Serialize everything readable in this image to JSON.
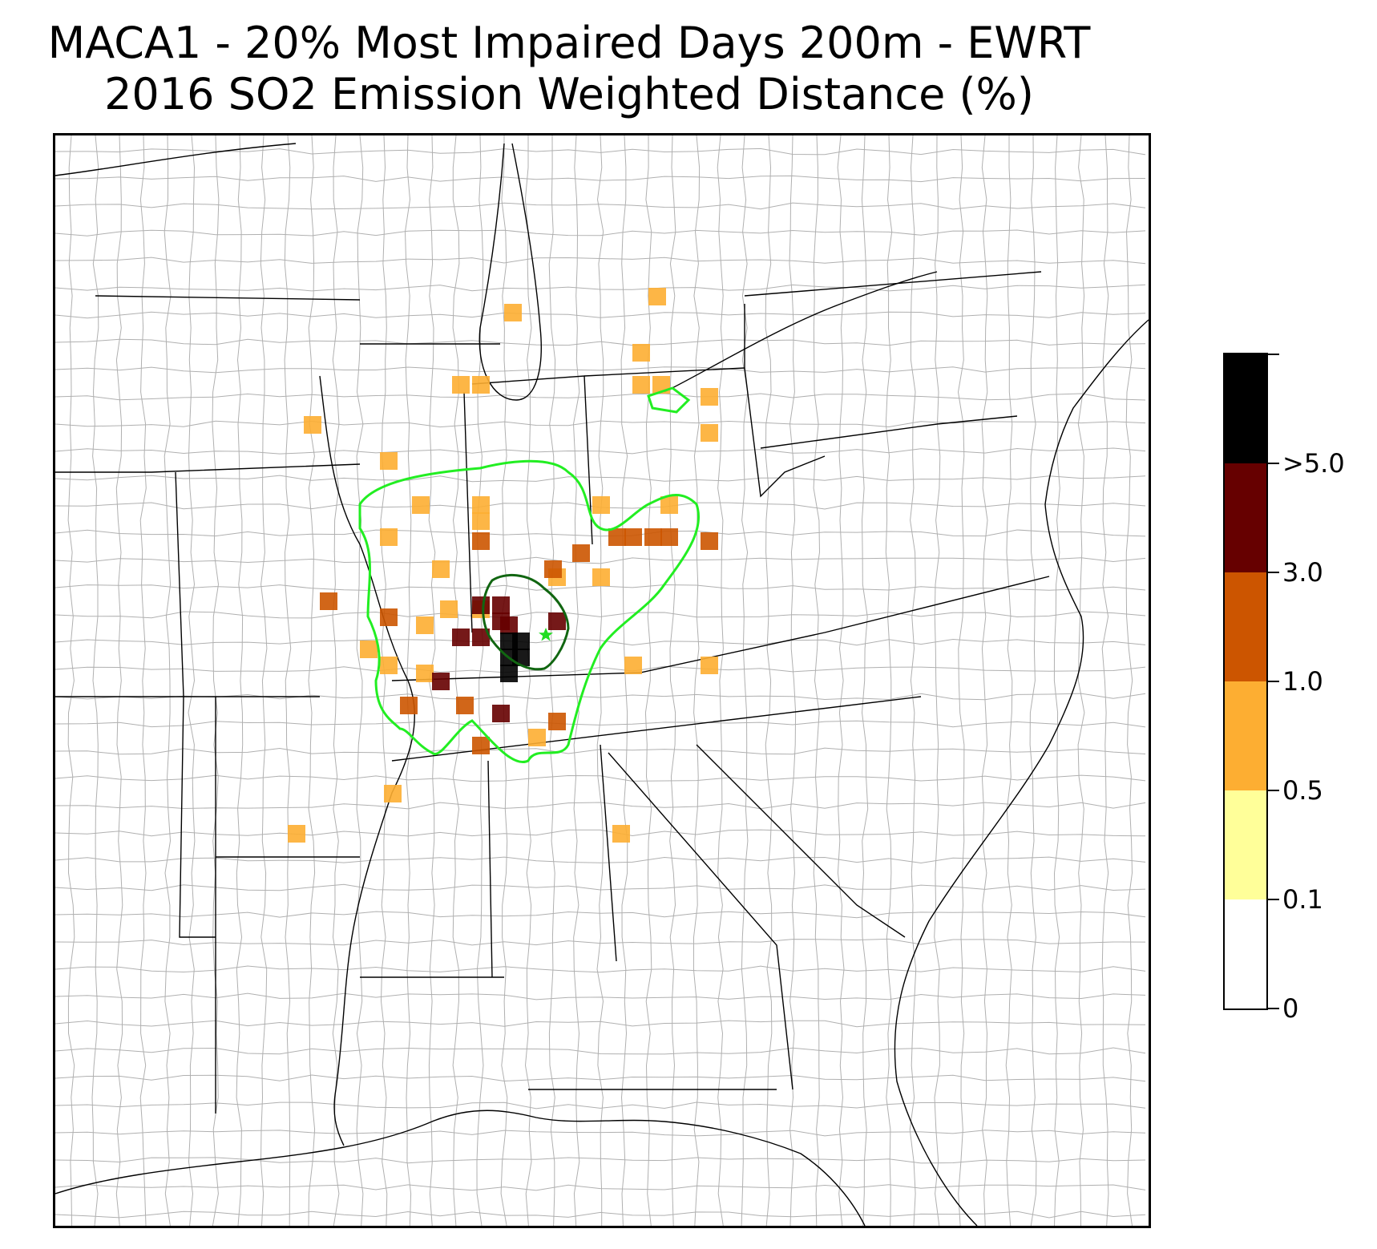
{
  "title": {
    "line1": "MACA1 - 20% Most Impaired Days 200m - EWRT",
    "line2": "2016 SO2 Emission Weighted Distance (%)"
  },
  "colorbar": {
    "bins": [
      {
        "from": "0",
        "to": "0.1",
        "color": "#ffffff"
      },
      {
        "from": "0.1",
        "to": "0.5",
        "color": "#ffff99"
      },
      {
        "from": "0.5",
        "to": "1.0",
        "color": "#fdae32"
      },
      {
        "from": "1.0",
        "to": "3.0",
        "color": "#cc5500"
      },
      {
        "from": "3.0",
        "to": ">5.0",
        "color": "#660000"
      },
      {
        "from": ">5.0",
        "to": "",
        "color": "#000000"
      }
    ],
    "tick_labels": [
      "0",
      "0.1",
      "0.5",
      "1.0",
      "3.0",
      ">5.0"
    ]
  },
  "map": {
    "site_marker": "star-icon",
    "site_marker_color": "#22dd22",
    "outer_contour_color": "#22ee22",
    "inner_contour_color": "#116611",
    "basemap": "eastern United States state and county boundaries"
  }
}
